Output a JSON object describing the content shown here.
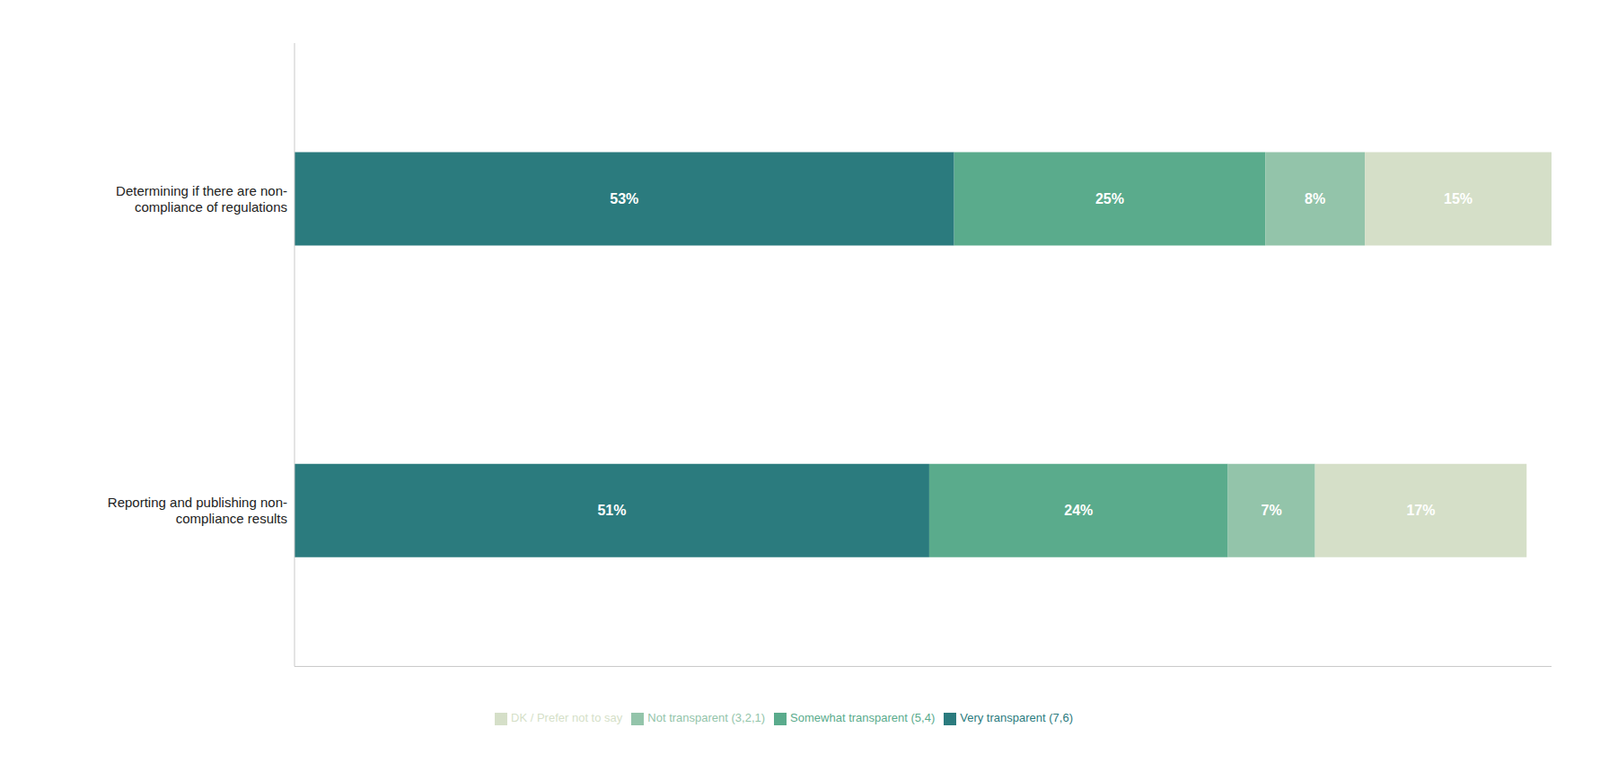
{
  "chart_data": {
    "type": "bar",
    "orientation": "horizontal",
    "stacked": true,
    "categories": [
      "Determining if there are non-\ncompliance of regulations",
      "Reporting and publishing non-\ncompliance results"
    ],
    "series": [
      {
        "name": "Very transparent (7,6)",
        "color": "#2b7b7e",
        "values": [
          53,
          51
        ],
        "value_labels": [
          "53%",
          "51%"
        ]
      },
      {
        "name": "Somewhat transparent (5,4)",
        "color": "#5aab8c",
        "values": [
          25,
          24
        ],
        "value_labels": [
          "25%",
          "24%"
        ]
      },
      {
        "name": "Not transparent (3,2,1)",
        "color": "#93c4aa",
        "values": [
          8,
          7
        ],
        "value_labels": [
          "8%",
          "7%"
        ]
      },
      {
        "name": "DK / Prefer not to say",
        "color": "#d5dfc8",
        "values": [
          15,
          17
        ],
        "value_labels": [
          "15%",
          "17%"
        ]
      }
    ],
    "xlim": [
      0,
      101
    ],
    "data_labels": true,
    "tick_labels": "y",
    "grid": false,
    "legend": "bottom"
  }
}
